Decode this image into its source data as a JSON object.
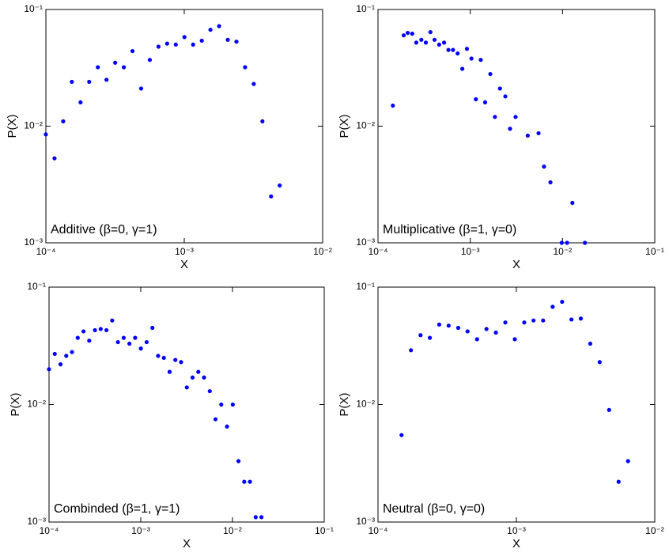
{
  "chart_data": [
    {
      "type": "scatter",
      "annotation": "Additive (β=0, γ=1)",
      "xlabel": "X",
      "ylabel": "P(X)",
      "color": "#0000ff",
      "log_x": true,
      "log_y": true,
      "x": [
        0.0001,
        0.0001155,
        0.0001334,
        0.0001541,
        0.000178,
        0.0002056,
        0.0002375,
        0.0002743,
        0.0003168,
        0.0003659,
        0.0004226,
        0.0004881,
        0.0005638,
        0.0006512,
        0.0007521,
        0.0008687,
        0.001003,
        0.001159,
        0.001339,
        0.001546,
        0.001786,
        0.002063,
        0.002382,
        0.002752,
        0.003178,
        0.003671,
        0.00424,
        0.004897
      ],
      "values": [
        0.0085,
        0.0053,
        0.011,
        0.024,
        0.016,
        0.024,
        0.032,
        0.025,
        0.035,
        0.032,
        0.044,
        0.021,
        0.037,
        0.048,
        0.051,
        0.05,
        0.058,
        0.05,
        0.054,
        0.067,
        0.072,
        0.055,
        0.053,
        0.032,
        0.023,
        0.011,
        0.0025,
        0.0031
      ],
      "xlim": [
        0.0001,
        0.01
      ],
      "ylim": [
        0.001,
        0.1
      ],
      "xticks": [
        {
          "value": 0.0001,
          "label": "10⁻⁴"
        },
        {
          "value": 0.001,
          "label": "10⁻³"
        },
        {
          "value": 0.01,
          "label": "10⁻²"
        }
      ],
      "yticks": [
        {
          "value": 0.001,
          "label": "10⁻³"
        },
        {
          "value": 0.01,
          "label": "10⁻²"
        },
        {
          "value": 0.1,
          "label": "10⁻¹"
        }
      ]
    },
    {
      "type": "scatter",
      "annotation": "Multiplicative (β=1, γ=0)",
      "xlabel": "X",
      "ylabel": "P(X)",
      "color": "#0000ff",
      "log_x": true,
      "log_y": true,
      "x": [
        0.000145,
        0.00019,
        0.00021,
        0.000235,
        0.00026,
        0.000295,
        0.00033,
        0.00037,
        0.00041,
        0.00046,
        0.00052,
        0.00058,
        0.00065,
        0.00073,
        0.00082,
        0.00092,
        0.00103,
        0.00115,
        0.0013,
        0.00145,
        0.00165,
        0.00185,
        0.0021,
        0.0024,
        0.0027,
        0.0031,
        0.0042,
        0.0055,
        0.0063,
        0.0074,
        0.0098,
        0.0112,
        0.0128,
        0.0175
      ],
      "values": [
        0.015,
        0.06,
        0.063,
        0.062,
        0.052,
        0.055,
        0.052,
        0.064,
        0.055,
        0.05,
        0.052,
        0.045,
        0.045,
        0.042,
        0.031,
        0.046,
        0.038,
        0.017,
        0.037,
        0.016,
        0.028,
        0.012,
        0.021,
        0.018,
        0.0095,
        0.012,
        0.0083,
        0.0087,
        0.0045,
        0.0033,
        0.001,
        0.001,
        0.0022,
        0.001
      ],
      "xlim": [
        0.0001,
        0.1
      ],
      "ylim": [
        0.001,
        0.1
      ],
      "xticks": [
        {
          "value": 0.0001,
          "label": "10⁻⁴"
        },
        {
          "value": 0.001,
          "label": "10⁻³"
        },
        {
          "value": 0.01,
          "label": "10⁻²"
        },
        {
          "value": 0.1,
          "label": "10⁻¹"
        }
      ],
      "yticks": [
        {
          "value": 0.001,
          "label": "10⁻³"
        },
        {
          "value": 0.01,
          "label": "10⁻²"
        },
        {
          "value": 0.1,
          "label": "10⁻¹"
        }
      ]
    },
    {
      "type": "scatter",
      "annotation": "Combinded (β=1, γ=1)",
      "xlabel": "X",
      "ylabel": "P(X)",
      "color": "#0000ff",
      "log_x": true,
      "log_y": true,
      "x": [
        0.0001,
        0.0001155,
        0.0001334,
        0.0001541,
        0.000178,
        0.0002056,
        0.0002375,
        0.0002743,
        0.0003168,
        0.0003659,
        0.0004226,
        0.0004881,
        0.0005638,
        0.0006512,
        0.0007521,
        0.0008687,
        0.001003,
        0.001159,
        0.001339,
        0.001546,
        0.001786,
        0.002063,
        0.002382,
        0.002752,
        0.003178,
        0.003671,
        0.00424,
        0.004897,
        0.005656,
        0.006533,
        0.007546,
        0.008715,
        0.01007,
        0.01163,
        0.01343,
        0.01551,
        0.01791,
        0.02069
      ],
      "values": [
        0.02,
        0.027,
        0.022,
        0.026,
        0.028,
        0.037,
        0.042,
        0.035,
        0.043,
        0.044,
        0.043,
        0.052,
        0.034,
        0.037,
        0.033,
        0.037,
        0.03,
        0.034,
        0.045,
        0.026,
        0.025,
        0.019,
        0.024,
        0.023,
        0.014,
        0.017,
        0.019,
        0.017,
        0.013,
        0.0075,
        0.01,
        0.0065,
        0.01,
        0.0033,
        0.0022,
        0.0022,
        0.0011,
        0.0011
      ],
      "xlim": [
        0.0001,
        0.1
      ],
      "ylim": [
        0.001,
        0.1
      ],
      "xticks": [
        {
          "value": 0.0001,
          "label": "10⁻⁴"
        },
        {
          "value": 0.001,
          "label": "10⁻³"
        },
        {
          "value": 0.01,
          "label": "10⁻²"
        },
        {
          "value": 0.1,
          "label": "10⁻¹"
        }
      ],
      "yticks": [
        {
          "value": 0.001,
          "label": "10⁻³"
        },
        {
          "value": 0.01,
          "label": "10⁻²"
        },
        {
          "value": 0.1,
          "label": "10⁻¹"
        }
      ]
    },
    {
      "type": "scatter",
      "annotation": "Neutral (β=0, γ=0)",
      "xlabel": "X",
      "ylabel": "P(X)",
      "color": "#0000ff",
      "log_x": true,
      "log_y": true,
      "x": [
        0.000148,
        0.000173,
        0.000203,
        0.000237,
        0.000277,
        0.000324,
        0.00038,
        0.000444,
        0.00052,
        0.000608,
        0.000711,
        0.000832,
        0.000974,
        0.00114,
        0.00133,
        0.00156,
        0.00183,
        0.00214,
        0.0025,
        0.00292,
        0.00342,
        0.004,
        0.00468,
        0.00548,
        0.00641
      ],
      "values": [
        0.0055,
        0.029,
        0.039,
        0.037,
        0.048,
        0.047,
        0.045,
        0.042,
        0.036,
        0.044,
        0.041,
        0.05,
        0.036,
        0.05,
        0.052,
        0.052,
        0.068,
        0.075,
        0.053,
        0.054,
        0.033,
        0.023,
        0.009,
        0.0022,
        0.0033
      ],
      "xlim": [
        0.0001,
        0.01
      ],
      "ylim": [
        0.001,
        0.1
      ],
      "xticks": [
        {
          "value": 0.0001,
          "label": "10⁻⁴"
        },
        {
          "value": 0.001,
          "label": "10⁻³"
        },
        {
          "value": 0.01,
          "label": "10⁻²"
        }
      ],
      "yticks": [
        {
          "value": 0.001,
          "label": "10⁻³"
        },
        {
          "value": 0.01,
          "label": "10⁻²"
        },
        {
          "value": 0.1,
          "label": "10⁻¹"
        }
      ]
    }
  ]
}
